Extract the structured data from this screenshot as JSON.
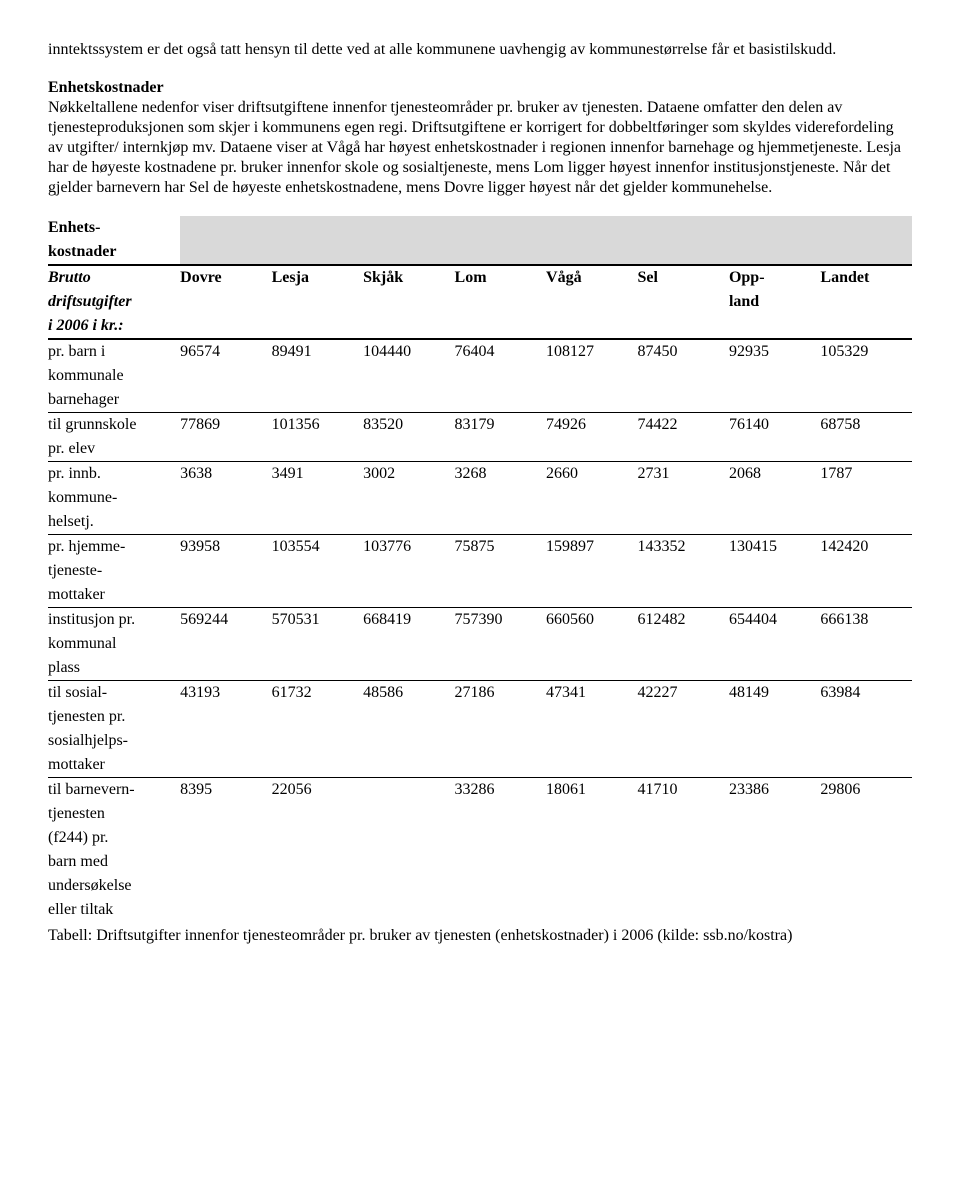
{
  "paragraphs": {
    "p1": "inntektssystem er det også tatt hensyn til dette ved at alle kommunene uavhengig av kommunestørrelse får et basistilskudd.",
    "h1": "Enhetskostnader",
    "p2": "Nøkkeltallene nedenfor viser driftsutgiftene innenfor tjenesteområder pr. bruker av tjenesten. Dataene omfatter den delen av tjenesteproduksjonen som skjer i kommunens egen regi. Driftsutgiftene er korrigert for dobbeltføringer som skyldes viderefordeling av utgifter/ internkjøp mv. Dataene viser at Vågå har høyest enhetskostnader i regionen innenfor barnehage og hjemmetjeneste. Lesja har de høyeste kostnadene pr. bruker innenfor skole og sosialtjeneste, mens Lom ligger høyest innenfor institusjonstjeneste. Når det gjelder barnevern har Sel de høyeste enhetskostnadene, mens Dovre ligger høyest når det gjelder kommunehelse."
  },
  "table": {
    "title_l1": "Enhets-",
    "title_l2": "kostnader",
    "sub_l1": "Brutto",
    "sub_l2": "driftsutgifter",
    "sub_l3": "i 2006 i kr.:",
    "cols": [
      "Dovre",
      "Lesja",
      "Skjåk",
      "Lom",
      "Vågå",
      "Sel",
      "Opp-",
      "Landet"
    ],
    "col7_l2": "land",
    "rows": [
      {
        "label_lines": [
          "pr. barn i",
          "kommunale",
          "barnehager"
        ],
        "vals": [
          "96574",
          "89491",
          "104440",
          "76404",
          "108127",
          "87450",
          "92935",
          "105329"
        ]
      },
      {
        "label_lines": [
          "til grunnskole",
          "pr. elev"
        ],
        "vals": [
          "77869",
          "101356",
          "83520",
          "83179",
          "74926",
          "74422",
          "76140",
          "68758"
        ]
      },
      {
        "label_lines": [
          "pr. innb.",
          "kommune-",
          "helsetj."
        ],
        "vals": [
          "3638",
          "3491",
          "3002",
          "3268",
          "2660",
          "2731",
          "2068",
          "1787"
        ]
      },
      {
        "label_lines": [
          "pr. hjemme-",
          "tjeneste-",
          "mottaker"
        ],
        "vals": [
          "93958",
          "103554",
          "103776",
          "75875",
          "159897",
          "143352",
          "130415",
          "142420"
        ]
      },
      {
        "label_lines": [
          "institusjon pr.",
          "kommunal",
          "plass"
        ],
        "vals": [
          "569244",
          "570531",
          "668419",
          "757390",
          "660560",
          "612482",
          "654404",
          "666138"
        ]
      },
      {
        "label_lines": [
          "til sosial-",
          "tjenesten pr.",
          "sosialhjelps-",
          "mottaker"
        ],
        "vals": [
          "43193",
          "61732",
          "48586",
          "27186",
          "47341",
          "42227",
          "48149",
          "63984"
        ]
      },
      {
        "label_lines": [
          "til barnevern-",
          "tjenesten",
          "(f244) pr.",
          "barn med",
          "undersøkelse",
          "eller tiltak"
        ],
        "vals": [
          "8395",
          "22056",
          "",
          "33286",
          "18061",
          "41710",
          "23386",
          "29806"
        ]
      }
    ],
    "caption": "Tabell: Driftsutgifter innenfor tjenesteområder pr. bruker av tjenesten (enhetskostnader) i 2006 (kilde: ssb.no/kostra)"
  }
}
